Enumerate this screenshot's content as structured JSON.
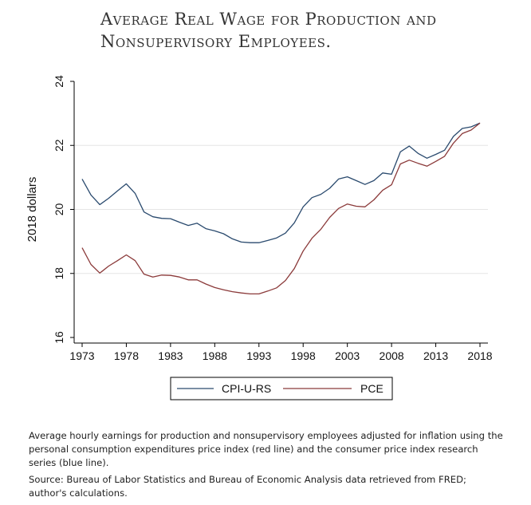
{
  "title_lines": [
    "Average Real Wage for Production and",
    "Nonsupervisory Employees."
  ],
  "notes": {
    "description": "Average hourly earnings for production and nonsupervisory employees adjusted for inflation using the personal consumption expenditures price index (red line) and the consumer price index research series (blue line).",
    "source": "Source: Bureau of Labor Statistics and Bureau of Economic Analysis data retrieved from FRED; author's calculations."
  },
  "chart_data": {
    "type": "line",
    "title": "Average Real Wage for Production and Nonsupervisory Employees.",
    "xlabel": "",
    "ylabel": "2018 dollars",
    "xlim": [
      1973,
      2018
    ],
    "ylim": [
      16,
      24
    ],
    "xticks": [
      1973,
      1978,
      1983,
      1988,
      1993,
      1998,
      2003,
      2008,
      2013,
      2018
    ],
    "yticks": [
      16,
      18,
      20,
      22,
      24
    ],
    "grid": "horizontal",
    "legend": "bottom",
    "colors": {
      "CPI-U-RS": "#2a4a6e",
      "PCE": "#8b3a3a"
    },
    "x": [
      1973,
      1974,
      1975,
      1976,
      1977,
      1978,
      1979,
      1980,
      1981,
      1982,
      1983,
      1984,
      1985,
      1986,
      1987,
      1988,
      1989,
      1990,
      1991,
      1992,
      1993,
      1994,
      1995,
      1996,
      1997,
      1998,
      1999,
      2000,
      2001,
      2002,
      2003,
      2004,
      2005,
      2006,
      2007,
      2008,
      2009,
      2010,
      2011,
      2012,
      2013,
      2014,
      2015,
      2016,
      2017,
      2018
    ],
    "series": [
      {
        "name": "CPI-U-RS",
        "values": [
          20.95,
          20.45,
          20.15,
          20.35,
          20.58,
          20.8,
          20.5,
          19.92,
          19.77,
          19.72,
          19.71,
          19.6,
          19.5,
          19.57,
          19.4,
          19.33,
          19.24,
          19.08,
          18.98,
          18.96,
          18.96,
          19.03,
          19.11,
          19.26,
          19.58,
          20.08,
          20.37,
          20.47,
          20.66,
          20.95,
          21.02,
          20.9,
          20.78,
          20.9,
          21.14,
          21.1,
          21.8,
          21.98,
          21.75,
          21.6,
          21.72,
          21.85,
          22.28,
          22.53,
          22.58,
          22.7
        ]
      },
      {
        "name": "PCE",
        "values": [
          18.8,
          18.28,
          18.01,
          18.23,
          18.4,
          18.58,
          18.4,
          17.98,
          17.89,
          17.95,
          17.94,
          17.89,
          17.8,
          17.8,
          17.67,
          17.56,
          17.49,
          17.43,
          17.39,
          17.36,
          17.36,
          17.45,
          17.55,
          17.78,
          18.15,
          18.7,
          19.1,
          19.38,
          19.75,
          20.03,
          20.17,
          20.1,
          20.08,
          20.3,
          20.6,
          20.77,
          21.42,
          21.54,
          21.44,
          21.35,
          21.5,
          21.66,
          22.07,
          22.37,
          22.48,
          22.7
        ]
      }
    ]
  }
}
